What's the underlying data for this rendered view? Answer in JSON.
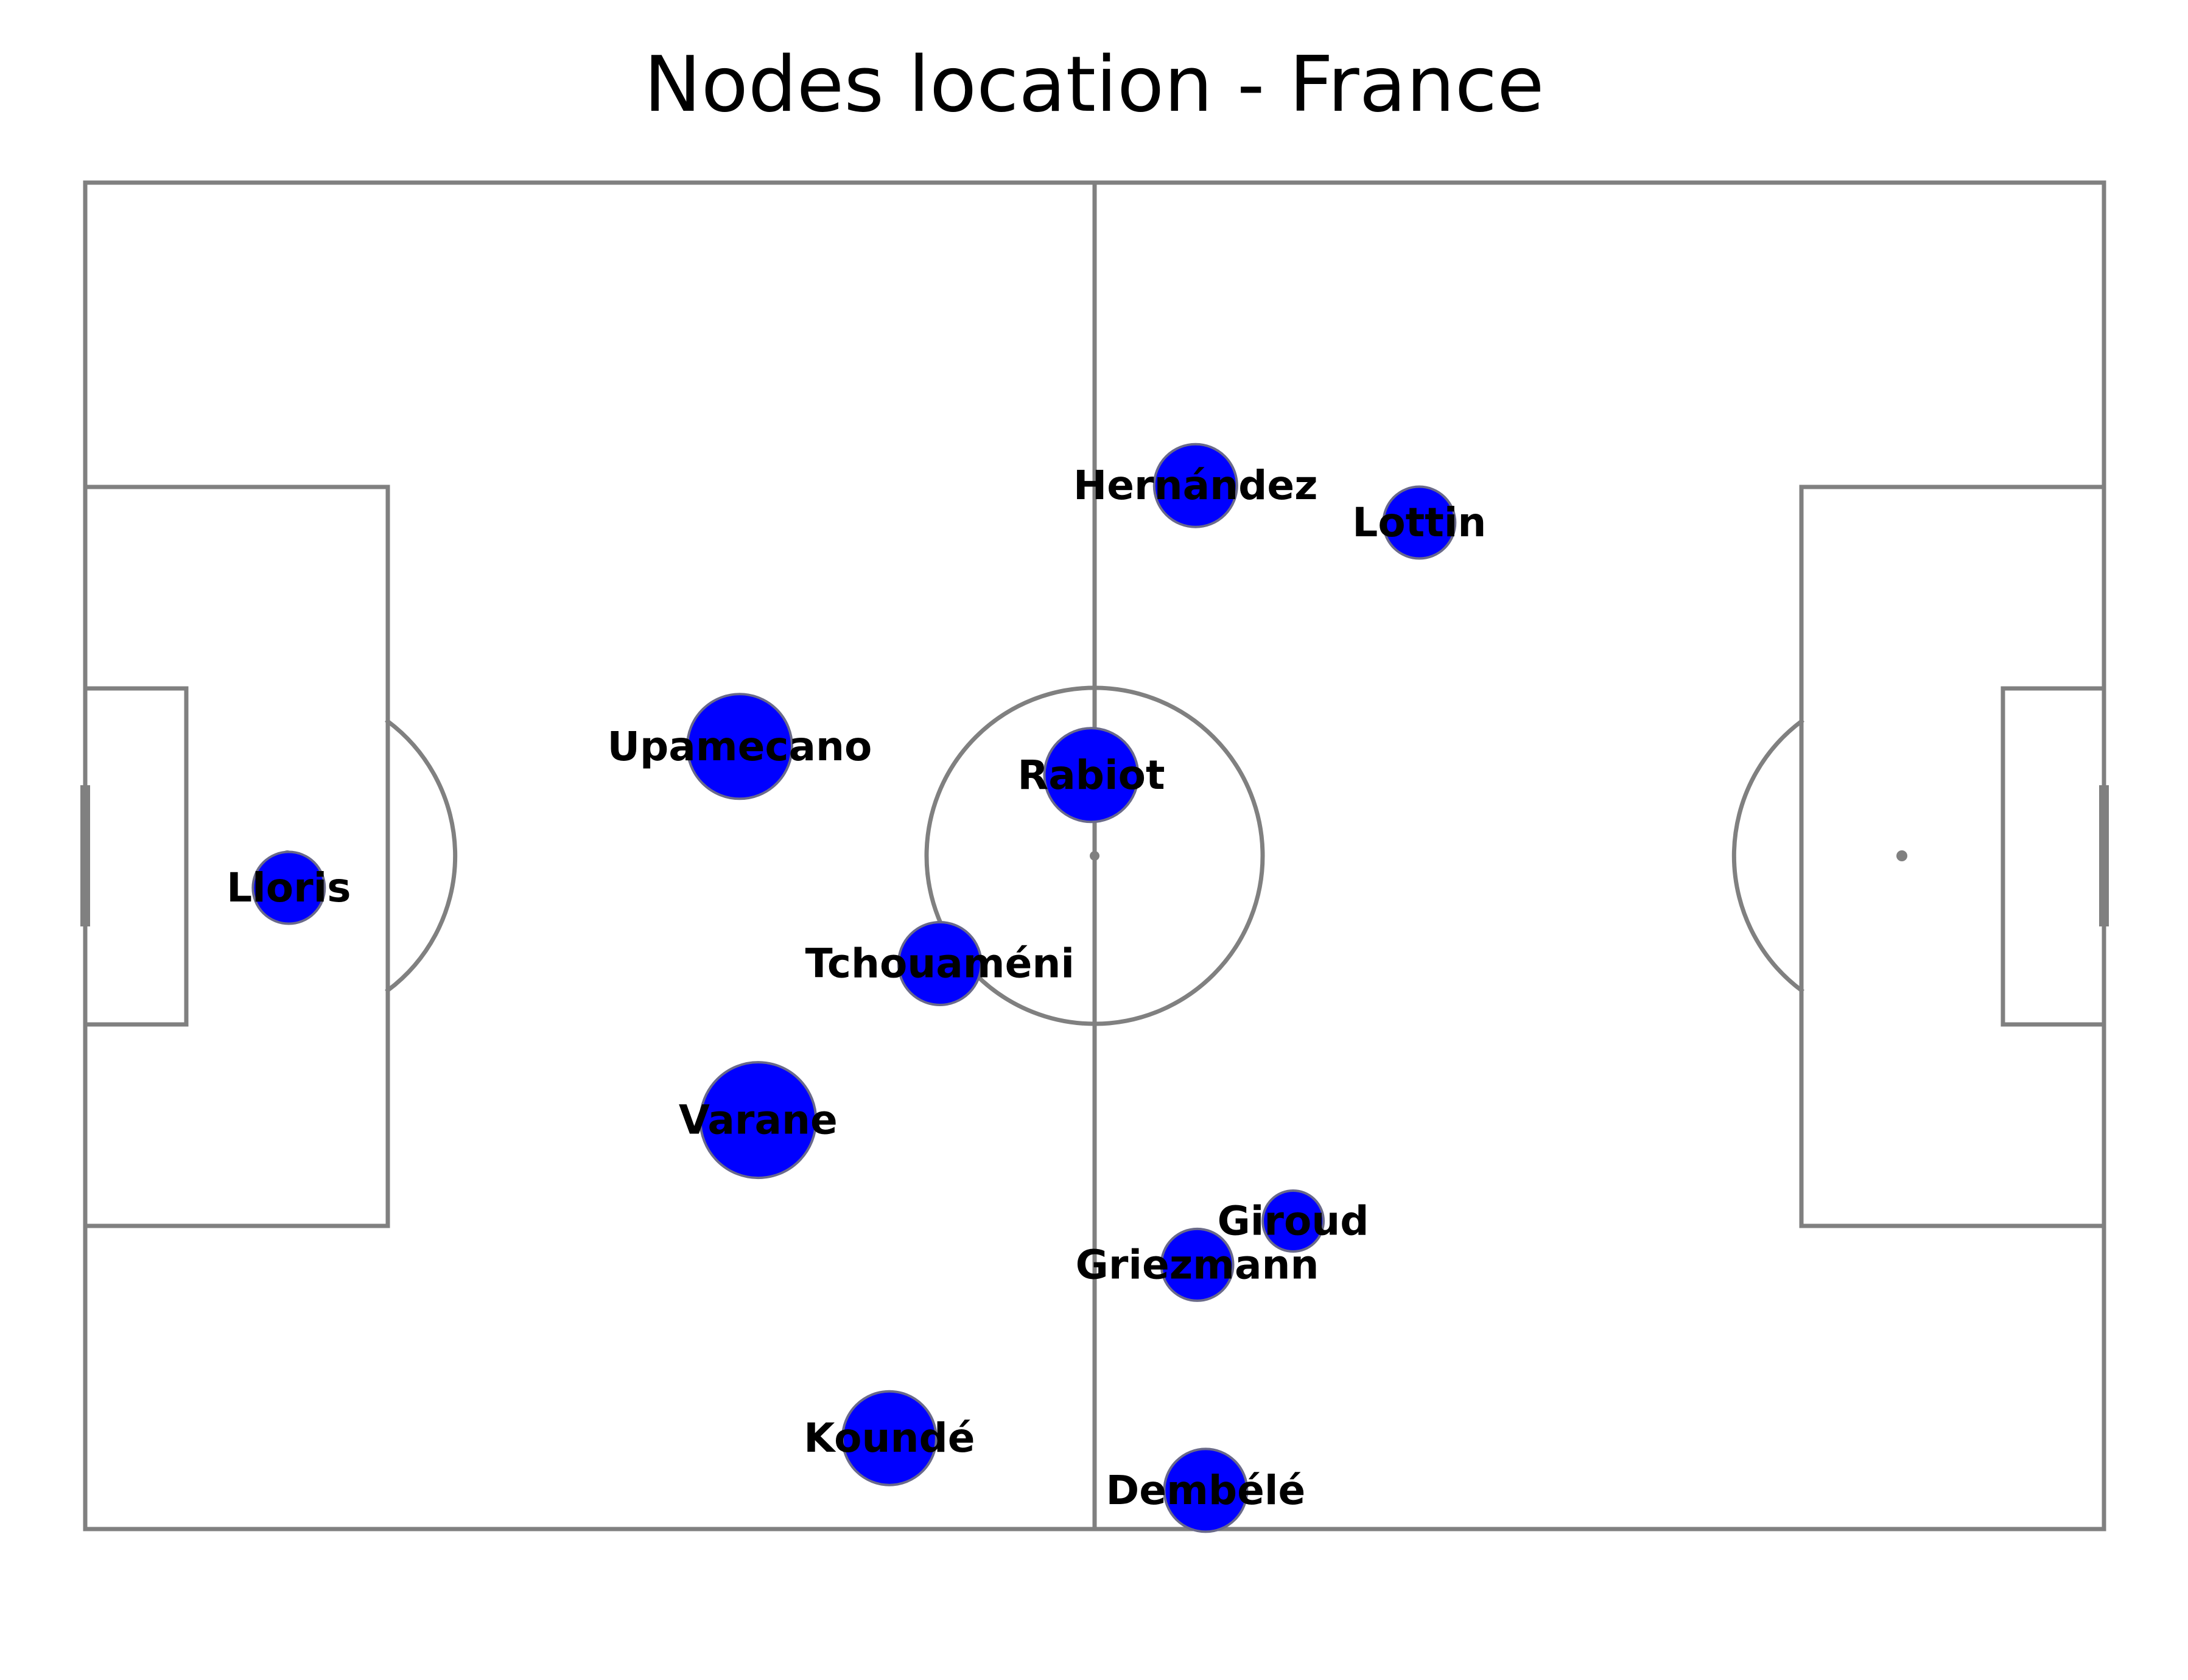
{
  "chart_data": {
    "type": "scatter",
    "title": "Nodes location - France",
    "xlim": [
      0,
      120
    ],
    "ylim": [
      0,
      80
    ],
    "grid": false,
    "node_color": "#0000ff",
    "line_color": "#808080",
    "points": [
      {
        "label": "Hernández",
        "x": 66.0,
        "y": 62.0,
        "size": 4
      },
      {
        "label": "Lottin",
        "x": 79.3,
        "y": 59.8,
        "size": 3
      },
      {
        "label": "Upamecano",
        "x": 38.9,
        "y": 46.5,
        "size": 6
      },
      {
        "label": "Rabiot",
        "x": 59.8,
        "y": 44.8,
        "size": 5
      },
      {
        "label": "Lloris",
        "x": 12.1,
        "y": 38.1,
        "size": 3
      },
      {
        "label": "Tchouaméni",
        "x": 50.8,
        "y": 33.6,
        "size": 4
      },
      {
        "label": "Varane",
        "x": 40.0,
        "y": 24.3,
        "size": 7
      },
      {
        "label": "Giroud",
        "x": 71.8,
        "y": 18.3,
        "size": 2
      },
      {
        "label": "Griezmann",
        "x": 66.1,
        "y": 15.7,
        "size": 3
      },
      {
        "label": "Koundé",
        "x": 47.8,
        "y": 5.4,
        "size": 5
      },
      {
        "label": "Dembélé",
        "x": 66.6,
        "y": 2.3,
        "size": 4
      }
    ]
  }
}
